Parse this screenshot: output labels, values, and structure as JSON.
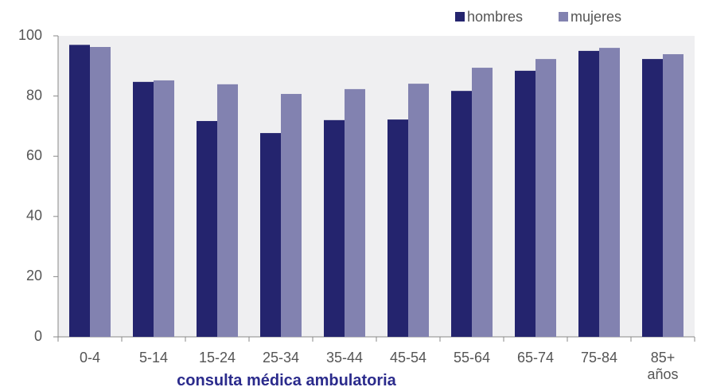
{
  "chart_data": {
    "type": "bar",
    "categories": [
      "0-4",
      "5-14",
      "15-24",
      "25-34",
      "35-44",
      "45-54",
      "55-64",
      "65-74",
      "75-84",
      "85+\naños"
    ],
    "series": [
      {
        "name": "hombres",
        "color": "#24246e",
        "values": [
          97,
          84.7,
          71.7,
          67.7,
          72,
          72.2,
          81.7,
          88.4,
          95,
          92.3
        ]
      },
      {
        "name": "mujeres",
        "color": "#8282b0",
        "values": [
          96.3,
          85.2,
          83.9,
          80.7,
          82.3,
          84.1,
          89.4,
          92.3,
          96,
          93.9
        ]
      }
    ],
    "x_label": "consulta médica ambulatoria",
    "ylim": [
      0,
      100
    ],
    "yticks": [
      0,
      20,
      40,
      60,
      80,
      100
    ],
    "grid": false,
    "legend": "top-right"
  }
}
